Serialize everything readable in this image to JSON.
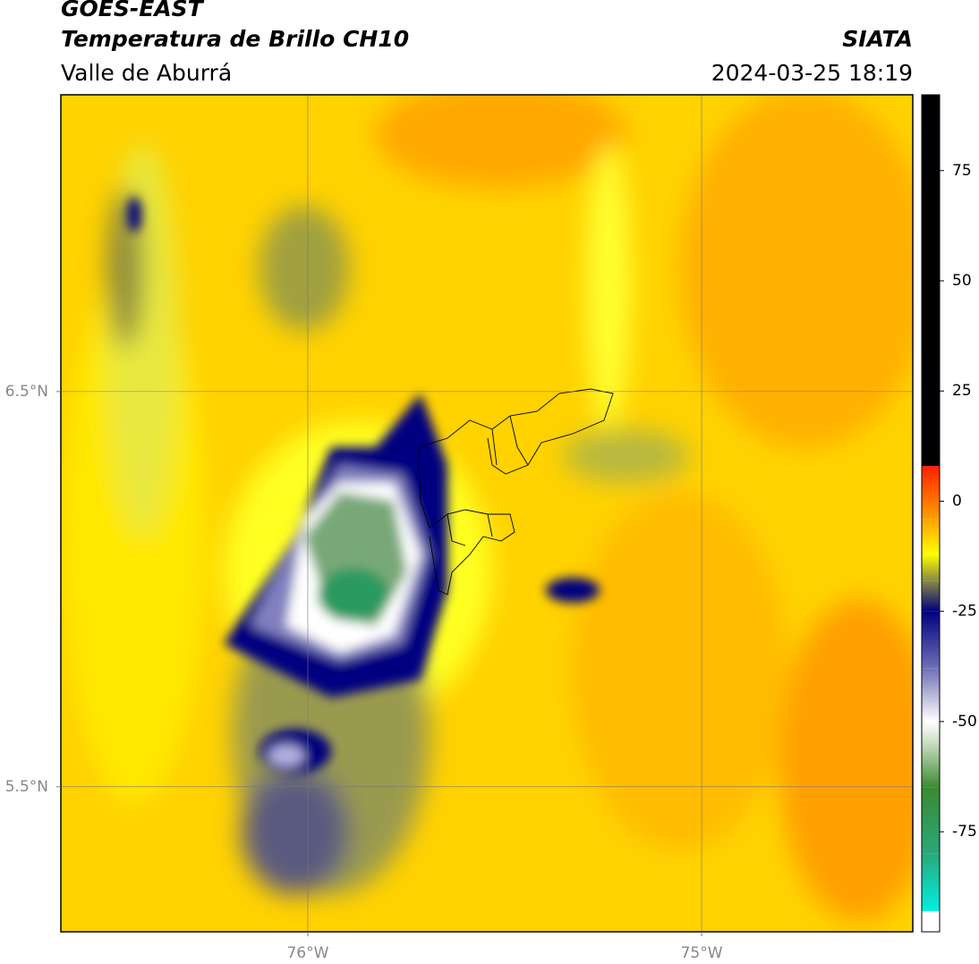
{
  "header": {
    "title": "GOES-EAST",
    "subtitle": "Temperatura de Brillo CH10",
    "region": "Valle de Aburrá",
    "source": "SIATA",
    "datetime": "2024-03-25 18:19"
  },
  "map": {
    "xlim": [
      -76.627,
      -74.464
    ],
    "ylim": [
      5.133,
      7.251
    ],
    "xticks": [
      {
        "value": -76,
        "label": "76°W"
      },
      {
        "value": -75,
        "label": "75°W"
      }
    ],
    "yticks": [
      {
        "value": 6.5,
        "label": "6.5°N"
      },
      {
        "value": 5.5,
        "label": "5.5°N"
      }
    ],
    "grid": true
  },
  "colorbar": {
    "clim": [
      -97.7,
      92.2
    ],
    "ticks": [
      75,
      50,
      25,
      0,
      -25,
      -50,
      -75
    ],
    "under_color": "#ffffff",
    "over_color": "#000000",
    "stops": [
      {
        "value": -93,
        "color": "#00f0e0"
      },
      {
        "value": -80,
        "color": "#2aa87a"
      },
      {
        "value": -65,
        "color": "#3a8a30"
      },
      {
        "value": -55,
        "color": "#c8dcc0"
      },
      {
        "value": -50,
        "color": "#ffffff"
      },
      {
        "value": -38,
        "color": "#7070b8"
      },
      {
        "value": -25,
        "color": "#000080"
      },
      {
        "value": -18,
        "color": "#8a8a40"
      },
      {
        "value": -12,
        "color": "#ffff00"
      },
      {
        "value": -4,
        "color": "#ffa000"
      },
      {
        "value": 8,
        "color": "#ff2000"
      }
    ]
  }
}
